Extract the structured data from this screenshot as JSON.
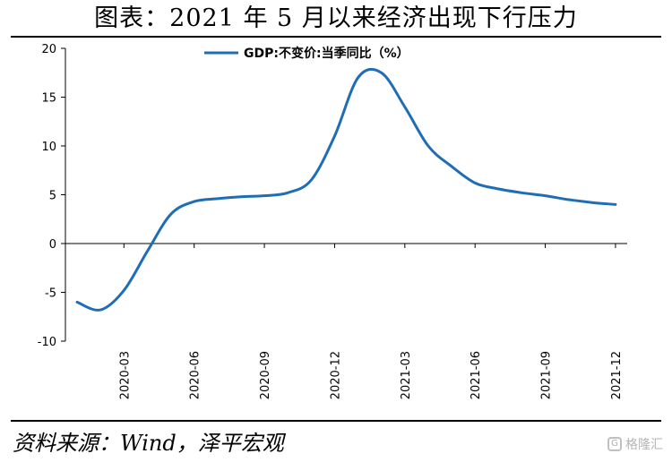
{
  "title": "图表：2021 年 5 月以来经济出现下行压力",
  "source": "资料来源：Wind，泽平宏观",
  "watermark": "格隆汇",
  "watermark_icon": "g-logo-icon",
  "chart_data": {
    "type": "line",
    "title": "图表：2021 年 5 月以来经济出现下行压力",
    "xlabel": "",
    "ylabel": "",
    "ylim": [
      -10,
      20
    ],
    "yticks": [
      -10,
      -5,
      0,
      5,
      10,
      15,
      20
    ],
    "ytick_labels": [
      "-10",
      "-5",
      "0",
      "5",
      "10",
      "15",
      "20"
    ],
    "x_range": [
      "2020-01",
      "2021-12"
    ],
    "xticks": [
      "2020-03",
      "2020-06",
      "2020-09",
      "2020-12",
      "2021-03",
      "2021-06",
      "2021-09",
      "2021-12"
    ],
    "grid": false,
    "legend": "top-center",
    "line_color": "#1f6db5",
    "series": [
      {
        "name": "GDP:不变价:当季同比（%）",
        "x": [
          "2020-01",
          "2020-02",
          "2020-03",
          "2020-04",
          "2020-05",
          "2020-06",
          "2020-07",
          "2020-08",
          "2020-09",
          "2020-10",
          "2020-11",
          "2020-12",
          "2021-01",
          "2021-02",
          "2021-03",
          "2021-04",
          "2021-05",
          "2021-06",
          "2021-07",
          "2021-08",
          "2021-09",
          "2021-10",
          "2021-11",
          "2021-12"
        ],
        "y": [
          -6.0,
          -6.8,
          -4.8,
          -0.8,
          3.0,
          4.3,
          4.6,
          4.8,
          4.9,
          5.2,
          6.5,
          11.0,
          17.0,
          17.5,
          14.0,
          10.0,
          7.9,
          6.2,
          5.6,
          5.2,
          4.9,
          4.5,
          4.2,
          4.0
        ]
      }
    ]
  }
}
